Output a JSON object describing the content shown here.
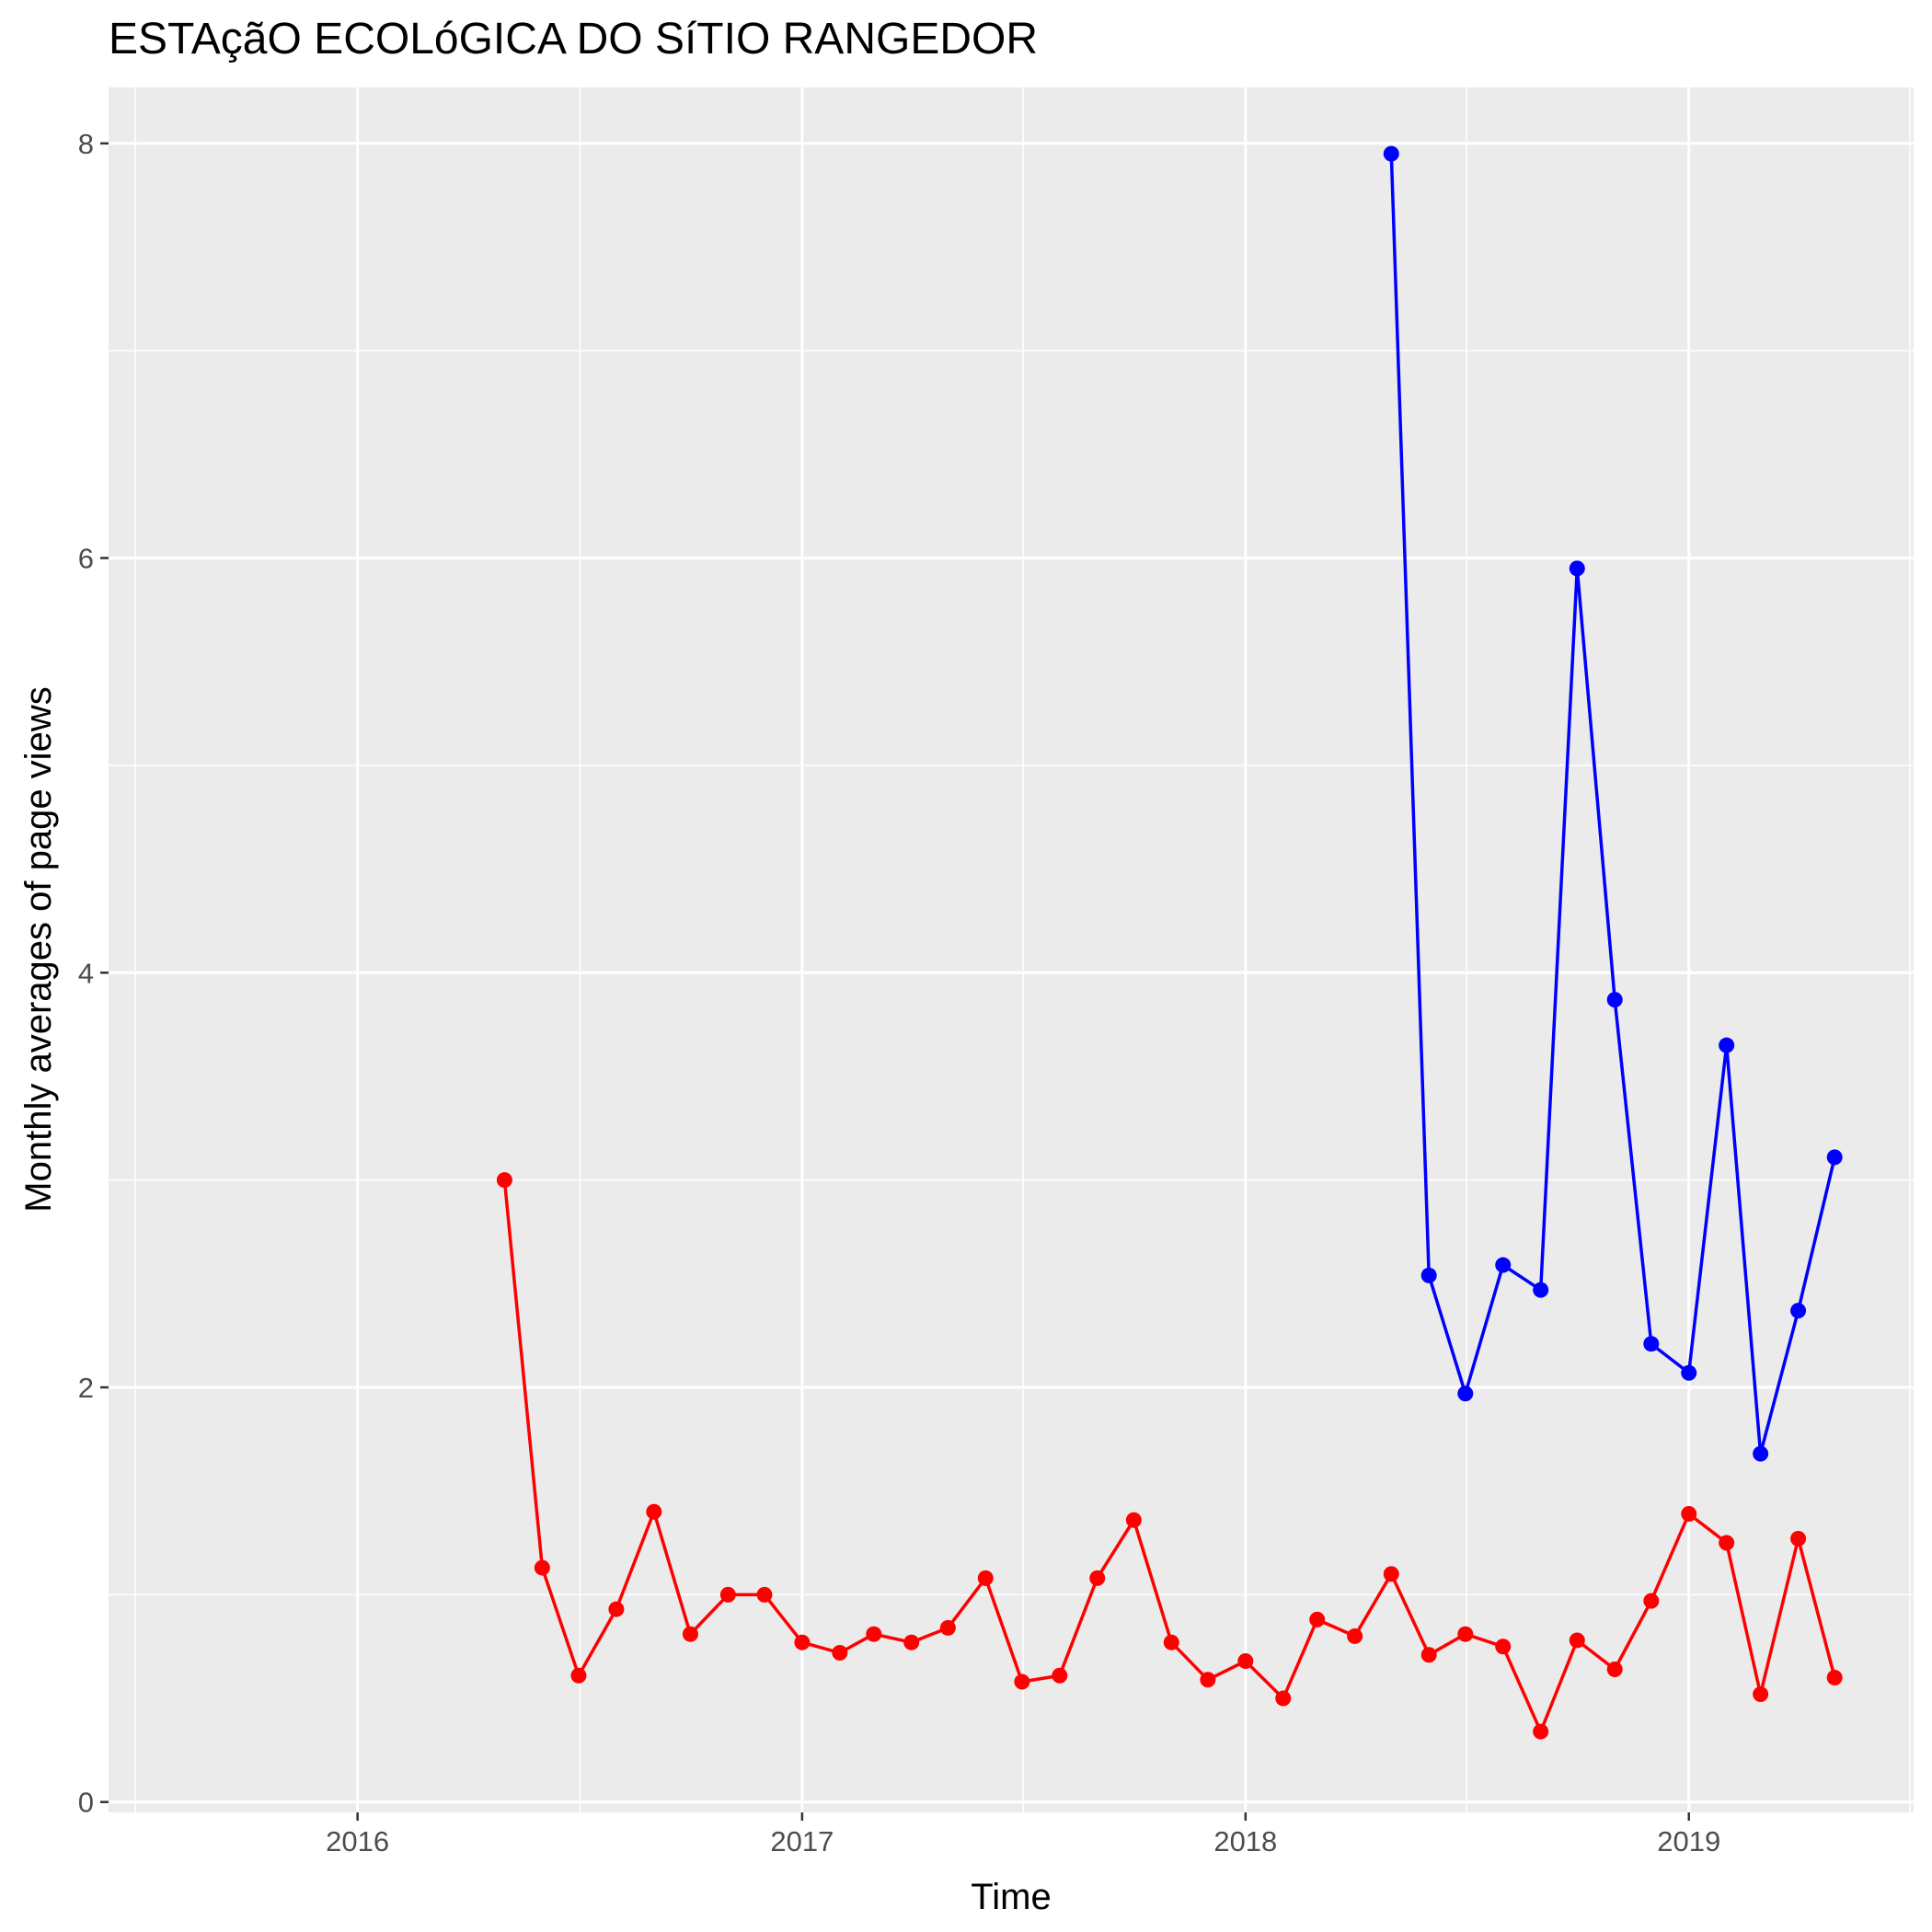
{
  "chart_data": {
    "type": "line",
    "title": "ESTAçãO ECOLóGICA DO SíTIO RANGEDOR",
    "xlabel": "Time",
    "ylabel": "Monthly averages of page views",
    "x_ticks": [
      "2016",
      "2017",
      "2018",
      "2019"
    ],
    "y_ticks": [
      "0",
      "2",
      "4",
      "6",
      "8"
    ],
    "xlim": [
      "2015-06-10",
      "2019-07-05"
    ],
    "ylim": [
      -0.05,
      8.27
    ],
    "grid": true,
    "legend": "none",
    "background": "#ebebeb",
    "series": [
      {
        "color": "#ff0000",
        "x": [
          "2016-05-01",
          "2016-06-01",
          "2016-07-01",
          "2016-08-01",
          "2016-09-01",
          "2016-10-01",
          "2016-11-01",
          "2016-12-01",
          "2017-01-01",
          "2017-02-01",
          "2017-03-01",
          "2017-04-01",
          "2017-05-01",
          "2017-06-01",
          "2017-07-01",
          "2017-08-01",
          "2017-09-01",
          "2017-10-01",
          "2017-11-01",
          "2017-12-01",
          "2018-01-01",
          "2018-02-01",
          "2018-03-01",
          "2018-04-01",
          "2018-05-01",
          "2018-06-01",
          "2018-07-01",
          "2018-08-01",
          "2018-09-01",
          "2018-10-01",
          "2018-11-01",
          "2018-12-01",
          "2019-01-01",
          "2019-02-01",
          "2019-03-01",
          "2019-04-01",
          "2019-05-01"
        ],
        "values": [
          3.0,
          1.13,
          0.61,
          0.93,
          1.4,
          0.81,
          1.0,
          1.0,
          0.77,
          0.72,
          0.81,
          0.77,
          0.84,
          1.08,
          0.58,
          0.61,
          1.08,
          1.36,
          0.77,
          0.59,
          0.68,
          0.5,
          0.88,
          0.8,
          1.1,
          0.71,
          0.81,
          0.75,
          0.34,
          0.78,
          0.64,
          0.97,
          1.39,
          1.25,
          0.52,
          1.27,
          0.6
        ]
      },
      {
        "color": "#0000ff",
        "x": [
          "2018-05-01",
          "2018-06-01",
          "2018-07-01",
          "2018-08-01",
          "2018-09-01",
          "2018-10-01",
          "2018-11-01",
          "2018-12-01",
          "2019-01-01",
          "2019-02-01",
          "2019-03-01",
          "2019-04-01",
          "2019-05-01"
        ],
        "values": [
          7.95,
          2.54,
          1.97,
          2.59,
          2.47,
          5.95,
          3.87,
          2.21,
          2.07,
          3.65,
          1.68,
          2.37,
          3.11
        ]
      }
    ]
  }
}
